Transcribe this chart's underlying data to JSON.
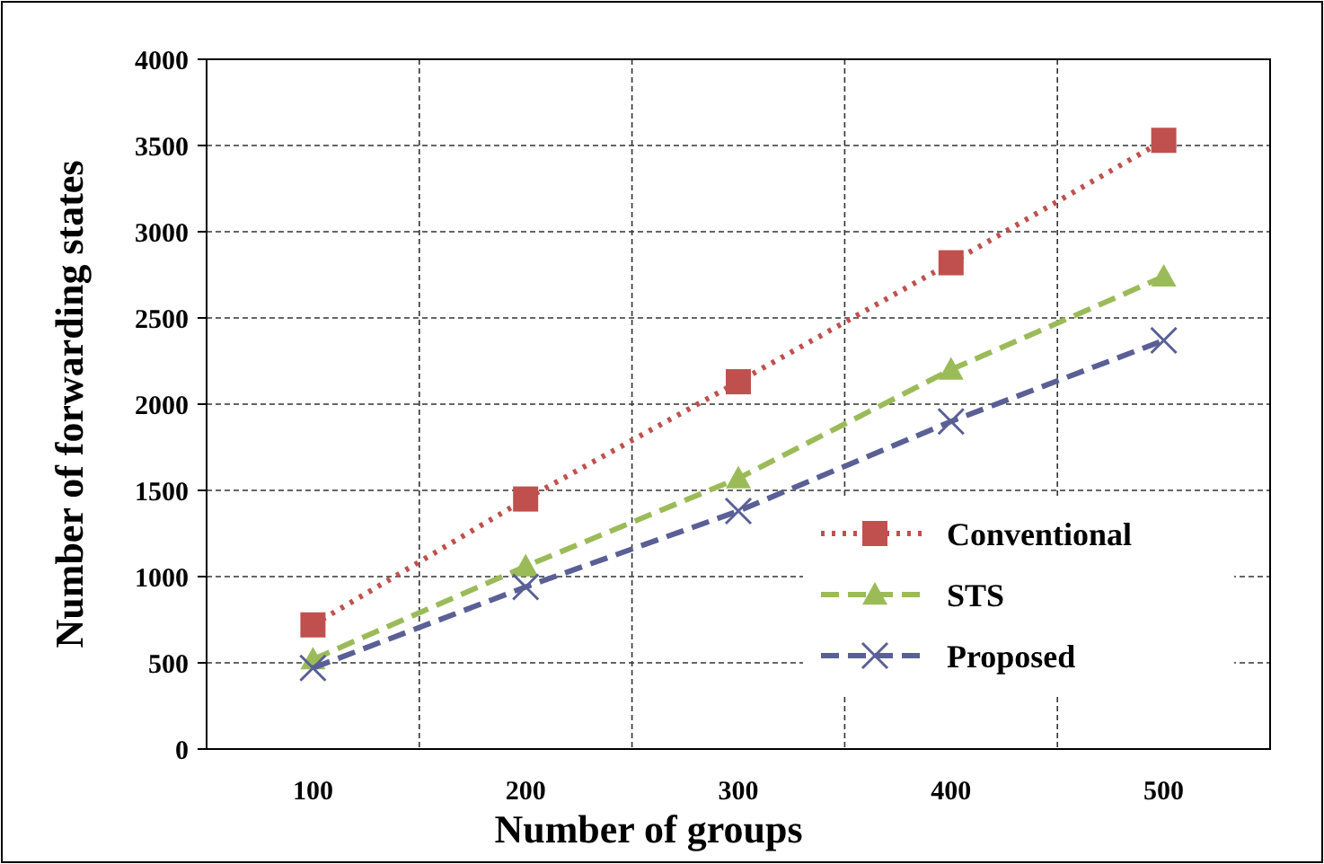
{
  "chart_data": {
    "type": "line",
    "xlabel": "Number of groups",
    "ylabel": "Number  of forwarding states",
    "categories": [
      "100",
      "200",
      "300",
      "400",
      "500"
    ],
    "ylim": [
      0,
      4000
    ],
    "yticks": [
      0,
      500,
      1000,
      1500,
      2000,
      2500,
      3000,
      3500,
      4000
    ],
    "grid": true,
    "legend": "bottom right",
    "series": [
      {
        "name": "Conventional",
        "color": "#c0504d",
        "marker": "square",
        "line_style": "dotted",
        "values": [
          720,
          1450,
          2130,
          2820,
          3530
        ]
      },
      {
        "name": "STS",
        "color": "#9bbb59",
        "marker": "triangle",
        "line_style": "dashed",
        "values": [
          520,
          1060,
          1570,
          2200,
          2740
        ]
      },
      {
        "name": "Proposed",
        "color": "#5a5f96",
        "marker": "cross",
        "line_style": "dashed",
        "values": [
          470,
          940,
          1380,
          1900,
          2370
        ]
      }
    ]
  }
}
